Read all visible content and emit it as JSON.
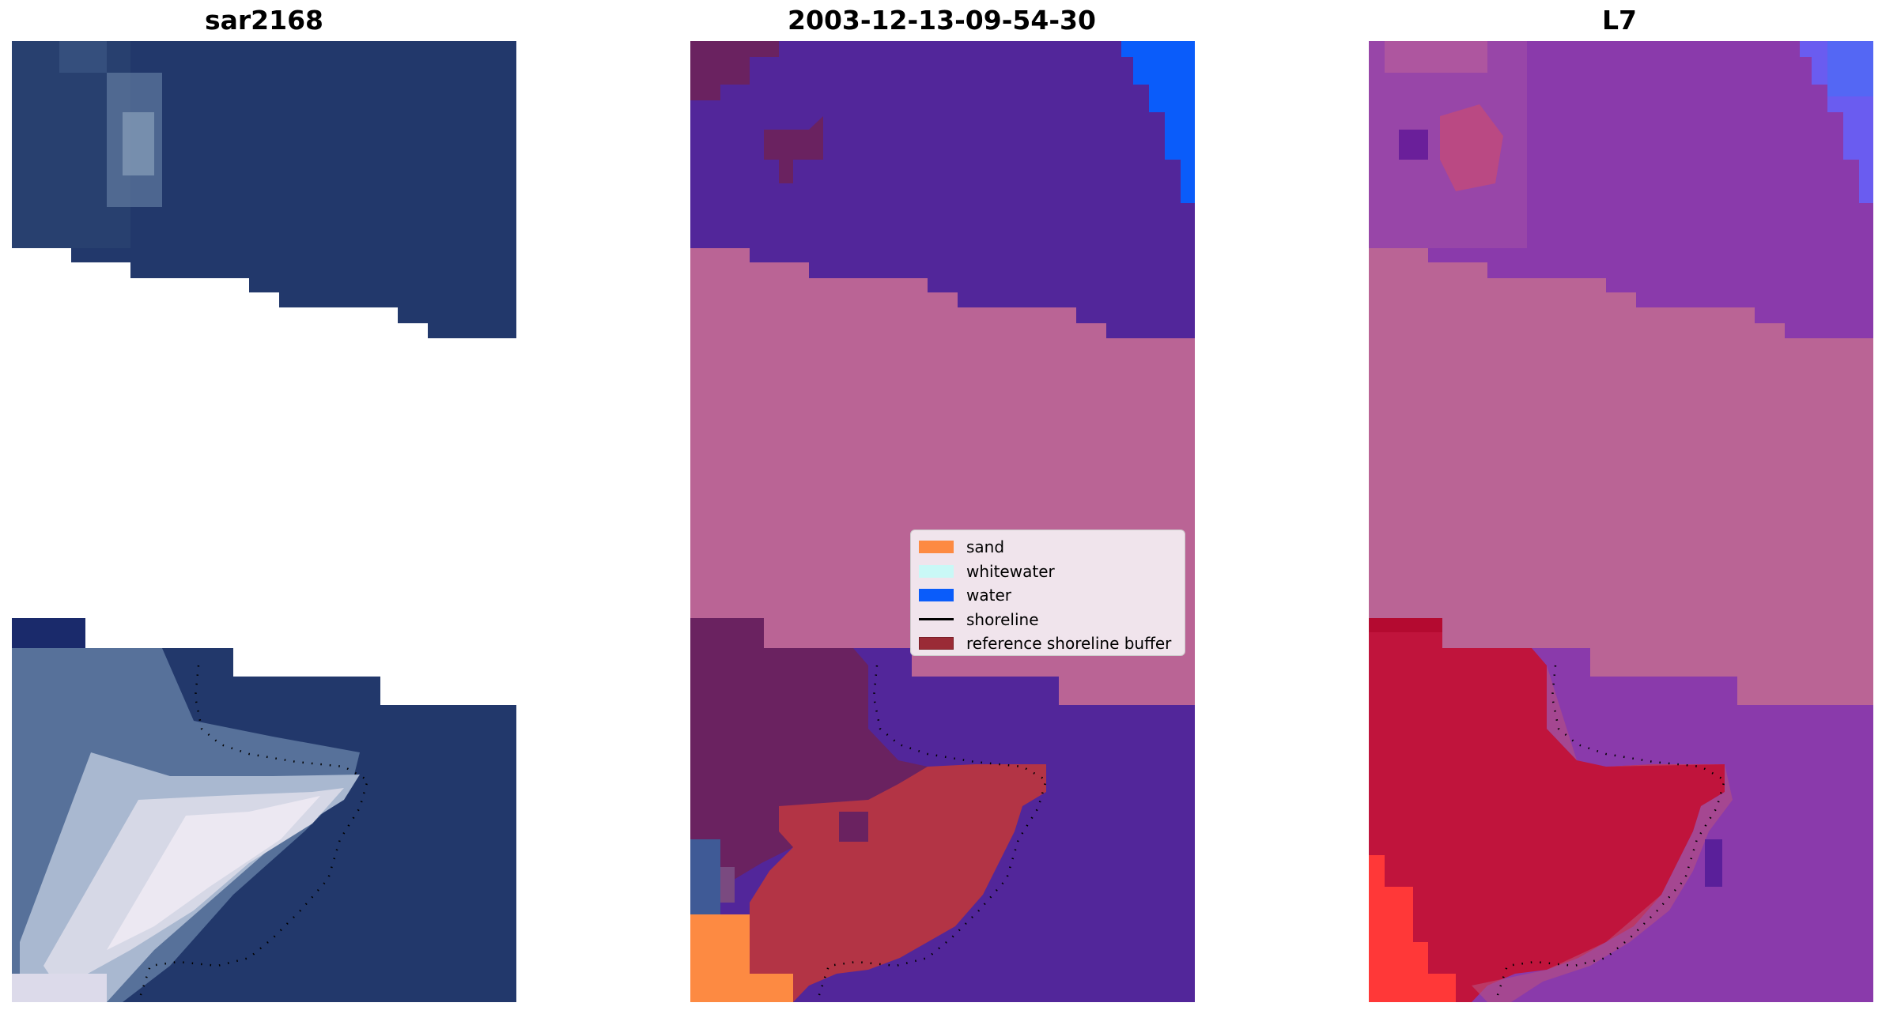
{
  "panels": [
    {
      "title": "sar2168"
    },
    {
      "title": "2003-12-13-09-54-30"
    },
    {
      "title": "L7"
    }
  ],
  "legend": {
    "items": [
      {
        "label": "sand",
        "color": "#fd8a42"
      },
      {
        "label": "whitewater",
        "color": "#c9f8f6"
      },
      {
        "label": "water",
        "color": "#0a5cfa"
      },
      {
        "label": "shoreline",
        "color": "#000000"
      },
      {
        "label": "reference shoreline buffer",
        "color": "#9a2b36"
      }
    ]
  },
  "colors": {
    "rgb_water": "#22376a",
    "rgb_whitewater": "#e6e2ee",
    "class_water_bg": "#52269a",
    "class_sand_bg": "#ba6495",
    "class_buffer": "#b33445",
    "class_land_dark": "#6a2260",
    "ndwi_purple": "#8a3aab",
    "ndwi_red": "#c0143c",
    "ndwi_pink": "#ba6495"
  }
}
